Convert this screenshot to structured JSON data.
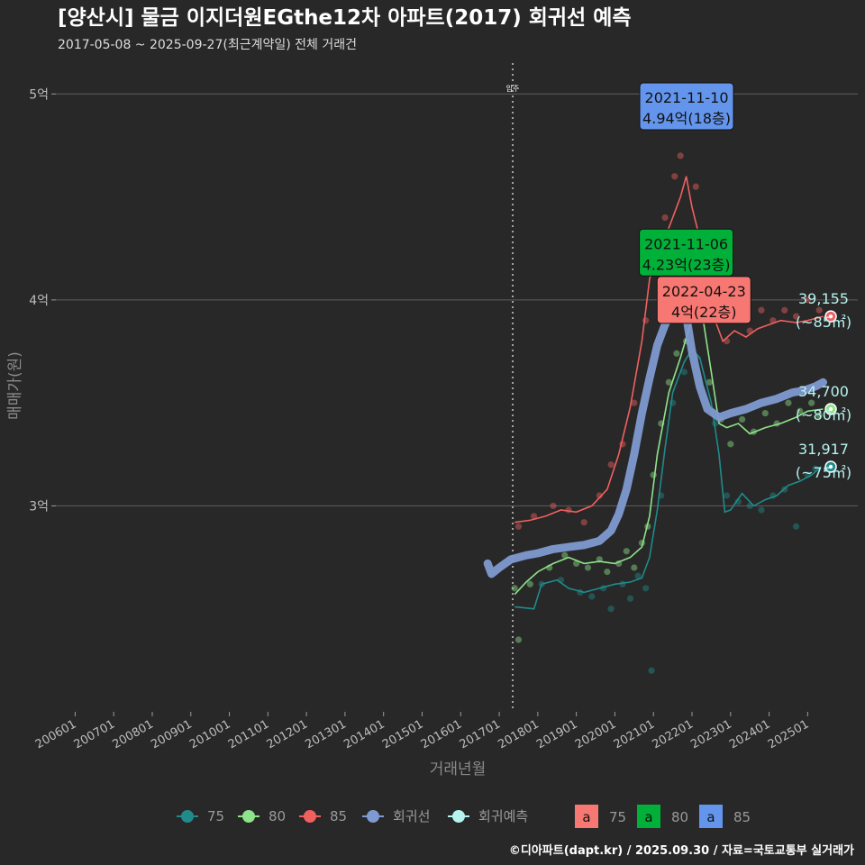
{
  "header": {
    "title": "[양산시] 물금 이지더원EGthe12차 아파트(2017) 회귀선 예측",
    "subtitle": "2017-05-08 ~ 2025-09-27(최근계약일) 전체 거래건"
  },
  "caption": "©디아파트(dapt.kr) / 2025.09.30 / 자료=국토교통부 실거래가",
  "chart_data": {
    "type": "scatter",
    "xlabel": "거래년월",
    "ylabel": "매매가(원)",
    "xlim": [
      2005.5,
      2026.3
    ],
    "ylim": [
      2.0,
      5.15
    ],
    "y_ticks": [
      {
        "v": 3,
        "label": "3억"
      },
      {
        "v": 4,
        "label": "4억"
      },
      {
        "v": 5,
        "label": "5억"
      }
    ],
    "x_ticks": [
      {
        "v": 2006,
        "label": "200601"
      },
      {
        "v": 2007,
        "label": "200701"
      },
      {
        "v": 2008,
        "label": "200801"
      },
      {
        "v": 2009,
        "label": "200901"
      },
      {
        "v": 2010,
        "label": "201001"
      },
      {
        "v": 2011,
        "label": "201101"
      },
      {
        "v": 2012,
        "label": "201201"
      },
      {
        "v": 2013,
        "label": "201301"
      },
      {
        "v": 2014,
        "label": "201401"
      },
      {
        "v": 2015,
        "label": "201501"
      },
      {
        "v": 2016,
        "label": "201601"
      },
      {
        "v": 2017,
        "label": "201701"
      },
      {
        "v": 2018,
        "label": "201801"
      },
      {
        "v": 2019,
        "label": "201901"
      },
      {
        "v": 2020,
        "label": "202001"
      },
      {
        "v": 2021,
        "label": "202101"
      },
      {
        "v": 2022,
        "label": "202201"
      },
      {
        "v": 2023,
        "label": "202301"
      },
      {
        "v": 2024,
        "label": "202401"
      },
      {
        "v": 2025,
        "label": "202501"
      }
    ],
    "move_in": {
      "x": 2017.35,
      "label": "입주"
    },
    "series": [
      {
        "name": "75",
        "color": "#1f8b8b",
        "trend": [
          [
            2017.4,
            2.51
          ],
          [
            2017.9,
            2.5
          ],
          [
            2018.1,
            2.62
          ],
          [
            2018.5,
            2.64
          ],
          [
            2018.8,
            2.6
          ],
          [
            2019.2,
            2.58
          ],
          [
            2019.6,
            2.6
          ],
          [
            2020.0,
            2.62
          ],
          [
            2020.4,
            2.63
          ],
          [
            2020.7,
            2.65
          ],
          [
            2020.9,
            2.75
          ],
          [
            2021.1,
            2.98
          ],
          [
            2021.3,
            3.28
          ],
          [
            2021.5,
            3.55
          ],
          [
            2021.8,
            3.7
          ],
          [
            2022.0,
            3.76
          ],
          [
            2022.2,
            3.72
          ],
          [
            2022.5,
            3.5
          ],
          [
            2022.7,
            3.25
          ],
          [
            2022.85,
            2.97
          ],
          [
            2023.0,
            2.98
          ],
          [
            2023.3,
            3.06
          ],
          [
            2023.6,
            3.0
          ],
          [
            2023.9,
            3.03
          ],
          [
            2024.2,
            3.05
          ],
          [
            2024.5,
            3.1
          ],
          [
            2024.8,
            3.12
          ],
          [
            2025.1,
            3.15
          ],
          [
            2025.35,
            3.19
          ]
        ],
        "points": [
          [
            2018.1,
            2.62
          ],
          [
            2018.6,
            2.64
          ],
          [
            2019.1,
            2.58
          ],
          [
            2019.4,
            2.56
          ],
          [
            2019.7,
            2.6
          ],
          [
            2019.9,
            2.5
          ],
          [
            2020.2,
            2.62
          ],
          [
            2020.4,
            2.55
          ],
          [
            2020.6,
            2.66
          ],
          [
            2020.8,
            2.6
          ],
          [
            2020.95,
            2.2
          ],
          [
            2021.2,
            3.05
          ],
          [
            2021.5,
            3.5
          ],
          [
            2021.8,
            3.65
          ],
          [
            2022.1,
            3.72
          ],
          [
            2022.6,
            3.4
          ],
          [
            2022.9,
            3.05
          ],
          [
            2023.2,
            3.02
          ],
          [
            2023.5,
            3.0
          ],
          [
            2023.8,
            2.98
          ],
          [
            2024.1,
            3.05
          ],
          [
            2024.4,
            3.08
          ],
          [
            2024.7,
            2.9
          ],
          [
            2025.0,
            3.15
          ],
          [
            2025.2,
            3.18
          ]
        ],
        "end": {
          "x": 2025.6,
          "y": 3.19,
          "value": "31,917",
          "area": "(~75㎡)"
        }
      },
      {
        "name": "80",
        "color": "#8fe38a",
        "trend": [
          [
            2017.4,
            2.57
          ],
          [
            2017.7,
            2.63
          ],
          [
            2018.0,
            2.68
          ],
          [
            2018.4,
            2.72
          ],
          [
            2018.8,
            2.75
          ],
          [
            2019.2,
            2.72
          ],
          [
            2019.6,
            2.73
          ],
          [
            2020.0,
            2.72
          ],
          [
            2020.4,
            2.75
          ],
          [
            2020.7,
            2.8
          ],
          [
            2020.9,
            2.95
          ],
          [
            2021.1,
            3.25
          ],
          [
            2021.4,
            3.55
          ],
          [
            2021.7,
            3.72
          ],
          [
            2021.95,
            3.88
          ],
          [
            2022.1,
            4.02
          ],
          [
            2022.25,
            3.95
          ],
          [
            2022.5,
            3.65
          ],
          [
            2022.7,
            3.4
          ],
          [
            2022.9,
            3.38
          ],
          [
            2023.2,
            3.4
          ],
          [
            2023.5,
            3.35
          ],
          [
            2023.9,
            3.38
          ],
          [
            2024.3,
            3.4
          ],
          [
            2024.7,
            3.43
          ],
          [
            2025.0,
            3.46
          ],
          [
            2025.4,
            3.47
          ]
        ],
        "points": [
          [
            2017.4,
            2.6
          ],
          [
            2017.5,
            2.35
          ],
          [
            2017.8,
            2.62
          ],
          [
            2018.3,
            2.7
          ],
          [
            2018.7,
            2.76
          ],
          [
            2019.0,
            2.72
          ],
          [
            2019.3,
            2.7
          ],
          [
            2019.6,
            2.74
          ],
          [
            2019.8,
            2.68
          ],
          [
            2020.1,
            2.72
          ],
          [
            2020.3,
            2.78
          ],
          [
            2020.5,
            2.7
          ],
          [
            2020.7,
            2.82
          ],
          [
            2020.85,
            2.9
          ],
          [
            2021.0,
            3.15
          ],
          [
            2021.2,
            3.4
          ],
          [
            2021.4,
            3.6
          ],
          [
            2021.6,
            3.74
          ],
          [
            2021.85,
            3.8
          ],
          [
            2022.0,
            4.0
          ],
          [
            2022.2,
            3.9
          ],
          [
            2022.45,
            3.6
          ],
          [
            2022.75,
            3.42
          ],
          [
            2023.0,
            3.3
          ],
          [
            2023.3,
            3.42
          ],
          [
            2023.6,
            3.36
          ],
          [
            2023.9,
            3.45
          ],
          [
            2024.2,
            3.4
          ],
          [
            2024.5,
            3.5
          ],
          [
            2024.8,
            3.46
          ],
          [
            2025.1,
            3.5
          ],
          [
            2025.3,
            3.44
          ]
        ],
        "end": {
          "x": 2025.6,
          "y": 3.47,
          "value": "34,700",
          "area": "(~80㎡)"
        }
      },
      {
        "name": "85",
        "color": "#f0605f",
        "trend": [
          [
            2017.4,
            2.92
          ],
          [
            2017.8,
            2.93
          ],
          [
            2018.2,
            2.95
          ],
          [
            2018.6,
            2.98
          ],
          [
            2019.0,
            2.97
          ],
          [
            2019.4,
            3.0
          ],
          [
            2019.8,
            3.08
          ],
          [
            2020.1,
            3.25
          ],
          [
            2020.4,
            3.48
          ],
          [
            2020.7,
            3.8
          ],
          [
            2020.9,
            4.1
          ],
          [
            2021.1,
            4.25
          ],
          [
            2021.4,
            4.35
          ],
          [
            2021.7,
            4.5
          ],
          [
            2021.85,
            4.6
          ],
          [
            2022.0,
            4.45
          ],
          [
            2022.2,
            4.3
          ],
          [
            2022.4,
            4.05
          ],
          [
            2022.6,
            3.9
          ],
          [
            2022.8,
            3.8
          ],
          [
            2023.1,
            3.85
          ],
          [
            2023.4,
            3.82
          ],
          [
            2023.7,
            3.86
          ],
          [
            2024.0,
            3.88
          ],
          [
            2024.3,
            3.9
          ],
          [
            2024.7,
            3.89
          ],
          [
            2025.0,
            3.9
          ],
          [
            2025.4,
            3.92
          ]
        ],
        "points": [
          [
            2017.5,
            2.9
          ],
          [
            2017.9,
            2.95
          ],
          [
            2018.4,
            3.0
          ],
          [
            2018.8,
            2.98
          ],
          [
            2019.2,
            2.92
          ],
          [
            2019.6,
            3.05
          ],
          [
            2019.9,
            3.2
          ],
          [
            2020.2,
            3.3
          ],
          [
            2020.5,
            3.5
          ],
          [
            2020.8,
            3.9
          ],
          [
            2021.0,
            4.2
          ],
          [
            2021.3,
            4.4
          ],
          [
            2021.55,
            4.6
          ],
          [
            2021.7,
            4.7
          ],
          [
            2021.86,
            4.94
          ],
          [
            2022.1,
            4.55
          ],
          [
            2022.35,
            4.2
          ],
          [
            2022.6,
            3.9
          ],
          [
            2022.9,
            3.8
          ],
          [
            2023.2,
            3.9
          ],
          [
            2023.5,
            3.85
          ],
          [
            2023.8,
            3.95
          ],
          [
            2024.1,
            3.9
          ],
          [
            2024.4,
            3.95
          ],
          [
            2024.7,
            3.92
          ],
          [
            2025.0,
            4.0
          ],
          [
            2025.3,
            3.95
          ]
        ],
        "end": {
          "x": 2025.6,
          "y": 3.92,
          "value": "39,155",
          "area": "(~85㎡)"
        }
      }
    ],
    "regression": {
      "name": "회귀선",
      "color": "#7f9ad0",
      "line": [
        [
          2016.7,
          2.72
        ],
        [
          2016.8,
          2.67
        ],
        [
          2017.0,
          2.7
        ],
        [
          2017.3,
          2.74
        ],
        [
          2017.7,
          2.76
        ],
        [
          2018.0,
          2.77
        ],
        [
          2018.4,
          2.79
        ],
        [
          2018.8,
          2.8
        ],
        [
          2019.2,
          2.81
        ],
        [
          2019.6,
          2.83
        ],
        [
          2019.9,
          2.88
        ],
        [
          2020.1,
          2.96
        ],
        [
          2020.3,
          3.08
        ],
        [
          2020.5,
          3.25
        ],
        [
          2020.7,
          3.45
        ],
        [
          2020.9,
          3.62
        ],
        [
          2021.1,
          3.78
        ],
        [
          2021.3,
          3.88
        ],
        [
          2021.5,
          3.95
        ],
        [
          2021.7,
          4.0
        ],
        [
          2021.8,
          3.98
        ],
        [
          2022.0,
          3.75
        ],
        [
          2022.2,
          3.58
        ],
        [
          2022.4,
          3.47
        ],
        [
          2022.7,
          3.43
        ],
        [
          2023.0,
          3.45
        ],
        [
          2023.4,
          3.47
        ],
        [
          2023.8,
          3.5
        ],
        [
          2024.2,
          3.52
        ],
        [
          2024.6,
          3.55
        ],
        [
          2024.9,
          3.56
        ],
        [
          2025.2,
          3.58
        ],
        [
          2025.4,
          3.6
        ]
      ]
    },
    "forecast": {
      "name": "회귀예측",
      "color": "#b6f2ee"
    },
    "annotations": [
      {
        "series": "85",
        "date": "2021-11-10",
        "price": "4.94억(18층)",
        "x": 2021.86,
        "y": 4.94,
        "fill": "#6495ed"
      },
      {
        "series": "80",
        "date": "2021-11-06",
        "price": "4.23억(23층)",
        "x": 2021.85,
        "y": 4.23,
        "fill": "#00b038"
      },
      {
        "series": "75",
        "date": "2022-04-23",
        "price": "4억(22층)",
        "x": 2022.31,
        "y": 4.0,
        "fill": "#f77873"
      }
    ],
    "legend": {
      "placement": "bottom",
      "line_items": [
        {
          "label": "75",
          "color": "#1f8b8b"
        },
        {
          "label": "80",
          "color": "#8fe38a"
        },
        {
          "label": "85",
          "color": "#f0605f"
        },
        {
          "label": "회귀선",
          "color": "#7f9ad0"
        },
        {
          "label": "회귀예측",
          "color": "#b6f2ee"
        }
      ],
      "box_items": [
        {
          "glyph": "a",
          "label": "75",
          "color": "#f77873"
        },
        {
          "glyph": "a",
          "label": "80",
          "color": "#00b038"
        },
        {
          "glyph": "a",
          "label": "85",
          "color": "#6495ed"
        }
      ]
    }
  }
}
